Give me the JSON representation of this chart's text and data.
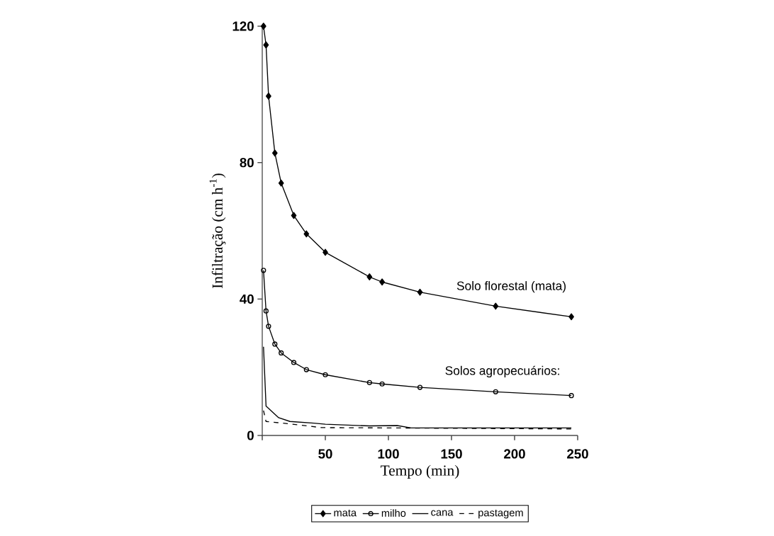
{
  "chart_data": {
    "type": "line",
    "xlabel": "Tempo (min)",
    "ylabel": "Infiltração (cm h$^{-1}$)",
    "xlim": [
      0,
      250
    ],
    "ylim": [
      0,
      120
    ],
    "xticks": [
      {
        "value": 0,
        "label": null
      },
      50,
      100,
      150,
      200,
      250
    ],
    "yticks": [
      0,
      40,
      80,
      120
    ],
    "grid": false,
    "legend": "bottom",
    "annotations": [
      "Solo florestal (mata)",
      "Solos agropecuários:"
    ],
    "series": [
      {
        "name": "mata",
        "color": "#000000",
        "marker": "diamond",
        "line_style": "solid",
        "x": [
          1,
          3,
          5,
          10,
          15,
          25,
          35,
          50,
          85,
          95,
          125,
          185,
          245
        ],
        "values": [
          120,
          114.5,
          99.5,
          82.8,
          74,
          64.5,
          59.1,
          53.7,
          46.5,
          45,
          42,
          37.9,
          34.8
        ]
      },
      {
        "name": "milho",
        "color": "#000000",
        "marker": "circle",
        "line_style": "solid",
        "x": [
          1,
          3,
          5,
          10,
          15,
          25,
          35,
          50,
          85,
          95,
          125,
          185,
          245
        ],
        "values": [
          48.4,
          36.5,
          32,
          26.8,
          24.2,
          21.4,
          19.3,
          17.8,
          15.5,
          15.1,
          14.1,
          12.8,
          11.7
        ]
      },
      {
        "name": "cana",
        "color": "#000000",
        "marker": "none",
        "line_style": "solid",
        "x": [
          1,
          3,
          13,
          22,
          41,
          50,
          85,
          107,
          118,
          150,
          245
        ],
        "values": [
          26,
          8.6,
          5.2,
          4.1,
          3.6,
          3.3,
          2.8,
          2.9,
          2.2,
          2.2,
          2.2
        ]
      },
      {
        "name": "pastagem",
        "color": "#000000",
        "marker": "none",
        "line_style": "dashed",
        "x": [
          1,
          3,
          22,
          47,
          107,
          245
        ],
        "values": [
          7.3,
          4.1,
          3.4,
          2.3,
          2.2,
          1.9
        ]
      }
    ]
  }
}
